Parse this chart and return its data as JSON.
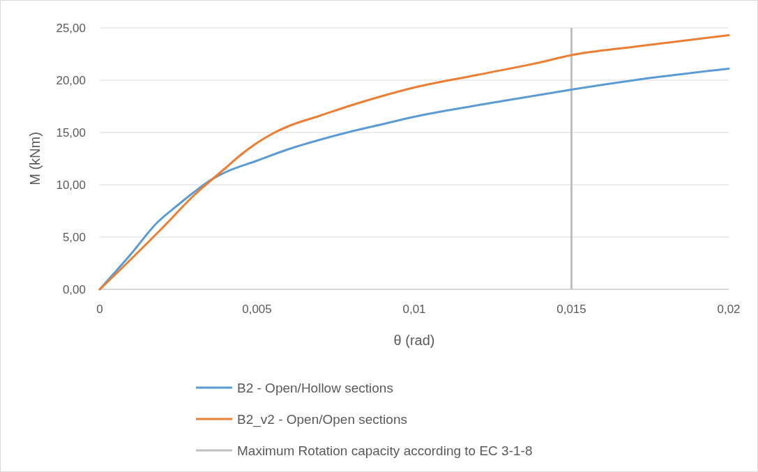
{
  "chart_data": {
    "type": "line",
    "xlabel": "θ (rad)",
    "ylabel": "M (kNm)",
    "xlim": [
      0,
      0.02
    ],
    "ylim": [
      0,
      25
    ],
    "xticks": [
      0,
      {
        "value": 0.005,
        "label": "0,005"
      },
      {
        "value": 0.01,
        "label": "0,01"
      },
      {
        "value": 0.015,
        "label": "0,015"
      },
      {
        "value": 0.02,
        "label": "0,02"
      }
    ],
    "yticks": [
      {
        "value": 0,
        "label": "0,00"
      },
      {
        "value": 5,
        "label": "5,00"
      },
      {
        "value": 10,
        "label": "10,00"
      },
      {
        "value": 15,
        "label": "15,00"
      },
      {
        "value": 20,
        "label": "20,00"
      },
      {
        "value": 25,
        "label": "25,00"
      }
    ],
    "grid": "y",
    "legend": "bottom",
    "marker": "none",
    "line_style": "solid",
    "series": [
      {
        "name": "B2 - Open/Hollow sections",
        "color": "#5b9bd5",
        "x": [
          0,
          0.001,
          0.0018,
          0.0025,
          0.003,
          0.0035,
          0.004,
          0.005,
          0.006,
          0.007,
          0.008,
          0.009,
          0.01,
          0.012,
          0.014,
          0.015,
          0.017,
          0.02
        ],
        "values": [
          0,
          3.4,
          6.3,
          8.1,
          9.3,
          10.4,
          11.2,
          12.3,
          13.4,
          14.3,
          15.1,
          15.8,
          16.5,
          17.6,
          18.6,
          19.1,
          20.0,
          21.1
        ]
      },
      {
        "name": "B2_v2 - Open/Open sections",
        "color": "#ed7d31",
        "x": [
          0,
          0.001,
          0.002,
          0.003,
          0.004,
          0.0045,
          0.005,
          0.0055,
          0.006,
          0.007,
          0.008,
          0.009,
          0.01,
          0.012,
          0.014,
          0.015,
          0.017,
          0.02
        ],
        "values": [
          0,
          2.9,
          5.9,
          9.0,
          11.6,
          12.9,
          14.0,
          14.9,
          15.6,
          16.6,
          17.6,
          18.5,
          19.3,
          20.5,
          21.7,
          22.4,
          23.2,
          24.3
        ]
      }
    ],
    "ref_lines": [
      {
        "axis": "x",
        "value": 0.015,
        "label": "Maximum Rotation capacity according to EC 3-1-8",
        "color": "#bfbfbf",
        "line_style": "solid"
      }
    ]
  }
}
